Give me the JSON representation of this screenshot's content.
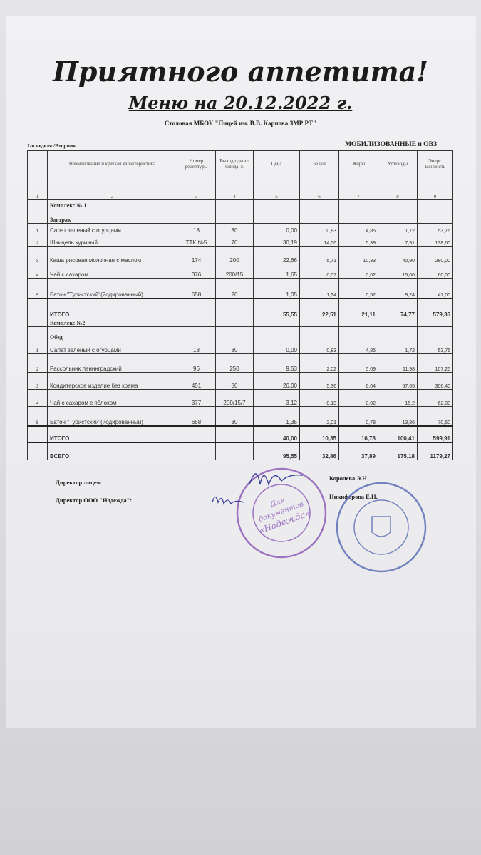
{
  "title": "Приятного аппетита!",
  "subtitle": "Меню на 20.12.2022 г.",
  "canteen": "Столовая МБОУ \"Лицей им. В.В. Карпова ЗМР РТ\"",
  "week": "1-я неделя /Вторник",
  "group": "МОБИЛИЗОВАННЫЕ и ОВЗ",
  "colors": {
    "stamp_purple": "#8a55b5",
    "stamp_blue": "#4a5fb0",
    "signature_ink": "#3a3f9a"
  },
  "headers": [
    "",
    "Наименование и краткая характеристика",
    "Номер рецептуры",
    "Выход одного блюда, г.",
    "Цена",
    "Белки",
    "Жиры",
    "Углеводы",
    "Энерг. Ценность"
  ],
  "col_numbers": [
    "1",
    "2",
    "3",
    "4",
    "5",
    "6",
    "7",
    "8",
    "9"
  ],
  "rows": [
    {
      "type": "sec",
      "name": "Комплекс № 1"
    },
    {
      "type": "sec",
      "name": "Завтрак"
    },
    {
      "type": "item",
      "cells": [
        "1",
        "Салат зеленый с огурцами",
        "18",
        "80",
        "0,00",
        "0,83",
        "4,85",
        "1,72",
        "53,76"
      ]
    },
    {
      "type": "item",
      "cells": [
        "2",
        "Шницель куриный",
        "ТТК №5",
        "70",
        "30,19",
        "14,56",
        "5,39",
        "7,91",
        "138,60"
      ]
    },
    {
      "type": "item",
      "cells": [
        "3",
        "Каша рисовая молочная с маслом",
        "174",
        "200",
        "22,66",
        "5,71",
        "10,33",
        "40,90",
        "280,00"
      ]
    },
    {
      "type": "item",
      "cells": [
        "4",
        "Чай с сахаром",
        "376",
        "200/15",
        "1,65",
        "0,07",
        "0,02",
        "15,00",
        "60,00"
      ]
    },
    {
      "type": "item",
      "cells": [
        "5",
        "Батон \"Туристский\"(йодированный)",
        "658",
        "20",
        "1,05",
        "1,34",
        "0,52",
        "9,24",
        "47,00"
      ]
    },
    {
      "type": "tot",
      "cells": [
        "",
        "ИТОГО",
        "",
        "",
        "55,55",
        "22,51",
        "21,11",
        "74,77",
        "579,36"
      ]
    },
    {
      "type": "sec",
      "name": "Комплекс №2"
    },
    {
      "type": "sec",
      "name": "Обед"
    },
    {
      "type": "item",
      "cells": [
        "1",
        "Салат зеленый с огурцами",
        "18",
        "80",
        "0,00",
        "0,83",
        "4,85",
        "1,72",
        "53,76"
      ]
    },
    {
      "type": "item",
      "cells": [
        "2",
        "Рассольник ленинградский",
        "96",
        "250",
        "9,53",
        "2,02",
        "5,09",
        "11,98",
        "107,25"
      ]
    },
    {
      "type": "item",
      "cells": [
        "3",
        "Кондитерское изделие без крема",
        "451",
        "80",
        "26,00",
        "5,36",
        "6,04",
        "57,65",
        "306,40"
      ]
    },
    {
      "type": "item",
      "cells": [
        "4",
        "Чай с сахаром с яблоком",
        "377",
        "200/15/7",
        "3,12",
        "0,13",
        "0,02",
        "15,2",
        "62,00"
      ]
    },
    {
      "type": "item",
      "cells": [
        "5",
        "Батон \"Туристский\"(йодированный)",
        "658",
        "30",
        "1,35",
        "2,01",
        "0,78",
        "13,86",
        "70,50"
      ]
    },
    {
      "type": "tot",
      "cells": [
        "",
        "ИТОГО",
        "",
        "",
        "40,00",
        "10,35",
        "16,78",
        "100,41",
        "599,91"
      ]
    },
    {
      "type": "tot",
      "cells": [
        "",
        "ВСЕГО",
        "",
        "",
        "95,55",
        "32,86",
        "37,89",
        "175,18",
        "1179,27"
      ]
    }
  ],
  "signatures": {
    "director_label": "Директор  лицея:",
    "director_name": "Королева Э.Н",
    "ooo_label": "Директор ООО \"Надежда\":",
    "ooo_name": "Никифорова Е.Н."
  },
  "stamp_text": "Для документов «Надежда»"
}
